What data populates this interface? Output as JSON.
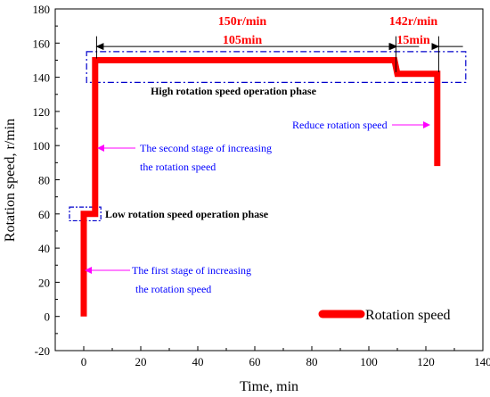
{
  "chart_data": {
    "type": "line",
    "xlabel": "Time, min",
    "ylabel": "Rotation speed, r/min",
    "xlim": [
      -10,
      140
    ],
    "ylim": [
      -20,
      180
    ],
    "x_ticks": [
      0,
      20,
      40,
      60,
      80,
      100,
      120,
      140
    ],
    "y_ticks": [
      -20,
      0,
      20,
      40,
      60,
      80,
      100,
      120,
      140,
      160,
      180
    ],
    "grid": false,
    "legend_position": "bottom-right",
    "series": [
      {
        "name": "Rotation speed",
        "color": "#ff0000",
        "points": [
          {
            "x": 0,
            "y": 0
          },
          {
            "x": 0,
            "y": 60
          },
          {
            "x": 4,
            "y": 60
          },
          {
            "x": 4,
            "y": 150
          },
          {
            "x": 109,
            "y": 150
          },
          {
            "x": 110,
            "y": 142
          },
          {
            "x": 124,
            "y": 142
          },
          {
            "x": 124,
            "y": 88
          }
        ]
      }
    ],
    "annotations": {
      "speed1": "150r/min",
      "time1": "105min",
      "speed2": "142r/min",
      "time2": "15min",
      "high_phase": "High rotation speed operation phase",
      "low_phase": "Low rotation speed operation phase",
      "second_stage_line1": "The second stage of increasing",
      "second_stage_line2": "the rotation speed",
      "first_stage_line1": "The first stage of increasing",
      "first_stage_line2": "the rotation speed",
      "reduce": "Reduce rotation speed"
    },
    "colors": {
      "series": "#ff0000",
      "annotation_blue": "#0000ff",
      "arrow_magenta": "#ff00ff",
      "phase_box": "#0000cc",
      "dimension_text": "#ff0000"
    }
  }
}
